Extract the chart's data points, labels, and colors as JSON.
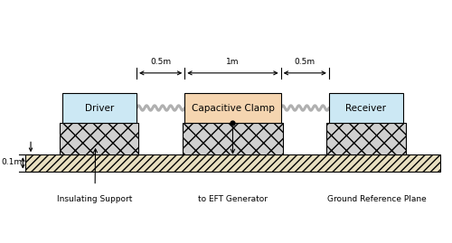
{
  "bg_color": "#ffffff",
  "driver_box_color": "#cce8f4",
  "receiver_box_color": "#cce8f4",
  "clamp_box_color": "#f5d5b0",
  "support_face_color": "#d0d0d0",
  "ground_face_color": "#e8dfc0",
  "cable_color": "#b0b0b0",
  "line_color": "#000000",
  "driver_label": "Driver",
  "receiver_label": "Receiver",
  "clamp_label": "Capacitive Clamp",
  "insulating_label": "Insulating Support",
  "eft_label": "to EFT Generator",
  "ground_label": "Ground Reference Plane",
  "dim1": "0.5m",
  "dim2": "1m",
  "dim3": "0.5m",
  "height_label": "0.1m",
  "font_size": 7.5,
  "xlim": [
    0,
    10
  ],
  "ylim": [
    0,
    5.38
  ]
}
